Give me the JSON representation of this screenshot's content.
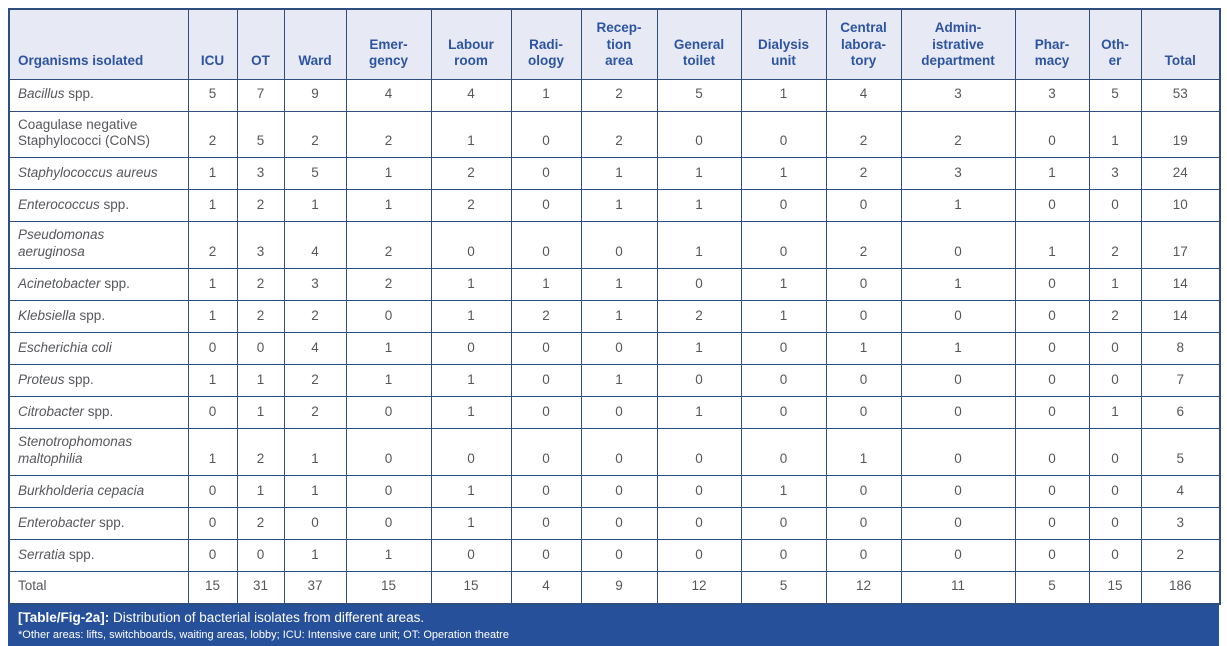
{
  "colors": {
    "header_bg": "#E7EAF4",
    "header_text": "#2D54A3",
    "border": "#2E4E7E",
    "body_text": "#56575B",
    "caption_bg": "#27509B",
    "caption_text": "#FFFFFF"
  },
  "table": {
    "columns": [
      {
        "label": "Organisms isolated"
      },
      {
        "label": "ICU"
      },
      {
        "label": "OT"
      },
      {
        "label": "Ward"
      },
      {
        "label": "Emer-\ngency"
      },
      {
        "label": "Labour\nroom"
      },
      {
        "label": "Radi-\nology"
      },
      {
        "label": "Recep-\ntion\narea"
      },
      {
        "label": "General\ntoilet"
      },
      {
        "label": "Dialysis\nunit"
      },
      {
        "label": "Central\nlabora-\ntory"
      },
      {
        "label": "Admin-\nistrative\ndepartment"
      },
      {
        "label": "Phar-\nmacy"
      },
      {
        "label": "Oth-\ner"
      },
      {
        "label": "Total"
      }
    ],
    "rows": [
      {
        "name_italic": "Bacillus",
        "name_regular": " spp.",
        "tall": false,
        "is_total": false,
        "values": [
          5,
          7,
          9,
          4,
          4,
          1,
          2,
          5,
          1,
          4,
          3,
          3,
          5,
          53
        ]
      },
      {
        "name_italic": "",
        "name_regular": "Coagulase negative\nStaphylococci (CoNS)",
        "tall": true,
        "is_total": false,
        "values": [
          2,
          5,
          2,
          2,
          1,
          0,
          2,
          0,
          0,
          2,
          2,
          0,
          1,
          19
        ]
      },
      {
        "name_italic": "Staphylococcus aureus",
        "name_regular": "",
        "tall": false,
        "is_total": false,
        "values": [
          1,
          3,
          5,
          1,
          2,
          0,
          1,
          1,
          1,
          2,
          3,
          1,
          3,
          24
        ]
      },
      {
        "name_italic": "Enterococcus",
        "name_regular": " spp.",
        "tall": false,
        "is_total": false,
        "values": [
          1,
          2,
          1,
          1,
          2,
          0,
          1,
          1,
          0,
          0,
          1,
          0,
          0,
          10
        ]
      },
      {
        "name_italic": "Pseudomonas\naeruginosa",
        "name_regular": "",
        "tall": true,
        "is_total": false,
        "values": [
          2,
          3,
          4,
          2,
          0,
          0,
          0,
          1,
          0,
          2,
          0,
          1,
          2,
          17
        ]
      },
      {
        "name_italic": "Acinetobacter",
        "name_regular": " spp.",
        "tall": false,
        "is_total": false,
        "values": [
          1,
          2,
          3,
          2,
          1,
          1,
          1,
          0,
          1,
          0,
          1,
          0,
          1,
          14
        ]
      },
      {
        "name_italic": "Klebsiella",
        "name_regular": " spp.",
        "tall": false,
        "is_total": false,
        "values": [
          1,
          2,
          2,
          0,
          1,
          2,
          1,
          2,
          1,
          0,
          0,
          0,
          2,
          14
        ]
      },
      {
        "name_italic": "Escherichia coli",
        "name_regular": "",
        "tall": false,
        "is_total": false,
        "values": [
          0,
          0,
          4,
          1,
          0,
          0,
          0,
          1,
          0,
          1,
          1,
          0,
          0,
          8
        ]
      },
      {
        "name_italic": "Proteus",
        "name_regular": " spp.",
        "tall": false,
        "is_total": false,
        "values": [
          1,
          1,
          2,
          1,
          1,
          0,
          1,
          0,
          0,
          0,
          0,
          0,
          0,
          7
        ]
      },
      {
        "name_italic": "Citrobacter",
        "name_regular": " spp.",
        "tall": false,
        "is_total": false,
        "values": [
          0,
          1,
          2,
          0,
          1,
          0,
          0,
          1,
          0,
          0,
          0,
          0,
          1,
          6
        ]
      },
      {
        "name_italic": "Stenotrophomonas\nmaltophilia",
        "name_regular": "",
        "tall": true,
        "is_total": false,
        "values": [
          1,
          2,
          1,
          0,
          0,
          0,
          0,
          0,
          0,
          1,
          0,
          0,
          0,
          5
        ]
      },
      {
        "name_italic": "Burkholderia cepacia",
        "name_regular": "",
        "tall": false,
        "is_total": false,
        "values": [
          0,
          1,
          1,
          0,
          1,
          0,
          0,
          0,
          1,
          0,
          0,
          0,
          0,
          4
        ]
      },
      {
        "name_italic": "Enterobacter",
        "name_regular": " spp.",
        "tall": false,
        "is_total": false,
        "values": [
          0,
          2,
          0,
          0,
          1,
          0,
          0,
          0,
          0,
          0,
          0,
          0,
          0,
          3
        ]
      },
      {
        "name_italic": "Serratia",
        "name_regular": " spp.",
        "tall": false,
        "is_total": false,
        "values": [
          0,
          0,
          1,
          1,
          0,
          0,
          0,
          0,
          0,
          0,
          0,
          0,
          0,
          2
        ]
      },
      {
        "name_italic": "",
        "name_regular": "Total",
        "tall": false,
        "is_total": true,
        "values": [
          15,
          31,
          37,
          15,
          15,
          4,
          9,
          12,
          5,
          12,
          11,
          5,
          15,
          186
        ]
      }
    ]
  },
  "caption": {
    "label": "[Table/Fig-2a]:",
    "text": " Distribution of bacterial isolates from different areas.",
    "footnote": "*Other areas: lifts, switchboards, waiting areas, lobby; ICU: Intensive care unit; OT: Operation theatre"
  }
}
